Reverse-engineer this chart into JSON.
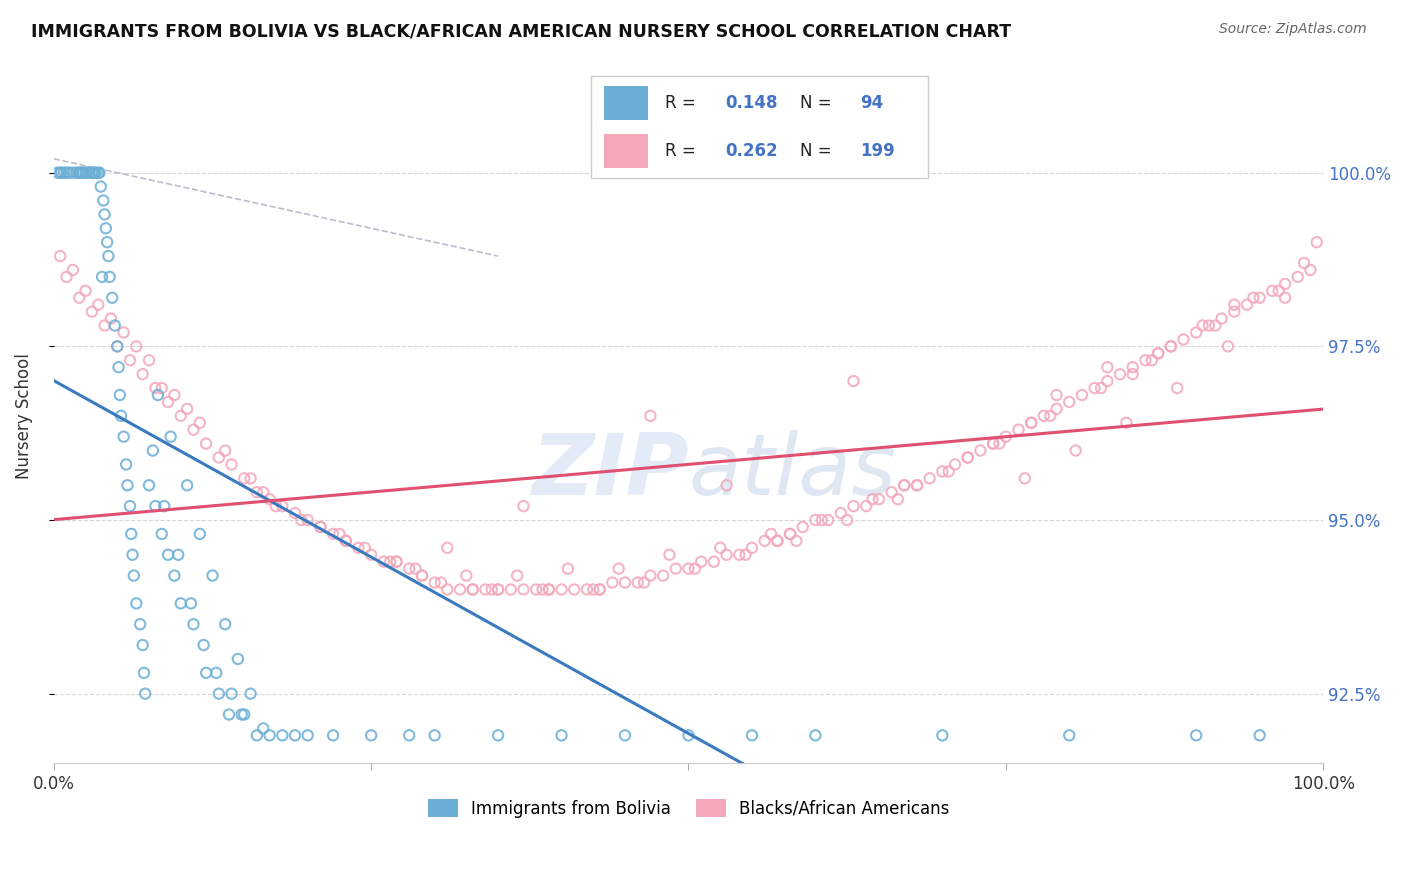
{
  "title": "IMMIGRANTS FROM BOLIVIA VS BLACK/AFRICAN AMERICAN NURSERY SCHOOL CORRELATION CHART",
  "source": "Source: ZipAtlas.com",
  "ylabel": "Nursery School",
  "xlim": [
    0,
    100
  ],
  "ylim": [
    91.5,
    101.5
  ],
  "yticks": [
    92.5,
    95.0,
    97.5,
    100.0
  ],
  "xticks": [
    0,
    25,
    50,
    75,
    100
  ],
  "ytick_labels": [
    "92.5%",
    "95.0%",
    "97.5%",
    "100.0%"
  ],
  "blue_color": "#6aaed6",
  "pink_color": "#f4a7b9",
  "blue_line_color": "#3a7abf",
  "pink_line_color": "#e05070",
  "blue_scatter_x": [
    0.3,
    0.5,
    0.6,
    0.8,
    1.0,
    1.2,
    1.5,
    1.8,
    2.0,
    2.1,
    2.2,
    2.3,
    2.5,
    2.6,
    2.8,
    3.0,
    3.1,
    3.2,
    3.3,
    3.5,
    3.6,
    3.7,
    3.9,
    4.0,
    4.1,
    4.2,
    4.3,
    4.4,
    4.6,
    4.8,
    5.0,
    5.1,
    5.2,
    5.3,
    5.5,
    5.7,
    5.8,
    6.0,
    6.1,
    6.2,
    6.3,
    6.5,
    6.8,
    7.0,
    7.1,
    7.2,
    7.5,
    7.8,
    8.0,
    8.2,
    8.5,
    8.7,
    9.0,
    9.2,
    9.5,
    9.8,
    10.0,
    10.5,
    10.8,
    11.0,
    11.5,
    11.8,
    12.0,
    12.5,
    12.8,
    13.0,
    13.5,
    13.8,
    14.0,
    14.5,
    14.8,
    15.0,
    15.5,
    16.0,
    16.5,
    17.0,
    18.0,
    19.0,
    20.0,
    22.0,
    25.0,
    28.0,
    30.0,
    35.0,
    40.0,
    45.0,
    50.0,
    55.0,
    60.0,
    70.0,
    80.0,
    90.0,
    95.0,
    3.8
  ],
  "blue_scatter_y": [
    100.0,
    100.0,
    100.0,
    100.0,
    100.0,
    100.0,
    100.0,
    100.0,
    100.0,
    100.0,
    100.0,
    100.0,
    100.0,
    100.0,
    100.0,
    100.0,
    100.0,
    100.0,
    100.0,
    100.0,
    100.0,
    99.8,
    99.6,
    99.4,
    99.2,
    99.0,
    98.8,
    98.5,
    98.2,
    97.8,
    97.5,
    97.2,
    96.8,
    96.5,
    96.2,
    95.8,
    95.5,
    95.2,
    94.8,
    94.5,
    94.2,
    93.8,
    93.5,
    93.2,
    92.8,
    92.5,
    95.5,
    96.0,
    95.2,
    96.8,
    94.8,
    95.2,
    94.5,
    96.2,
    94.2,
    94.5,
    93.8,
    95.5,
    93.8,
    93.5,
    94.8,
    93.2,
    92.8,
    94.2,
    92.8,
    92.5,
    93.5,
    92.2,
    92.5,
    93.0,
    92.2,
    92.2,
    92.5,
    91.9,
    92.0,
    91.9,
    91.9,
    91.9,
    91.9,
    91.9,
    91.9,
    91.9,
    91.9,
    91.9,
    91.9,
    91.9,
    91.9,
    91.9,
    91.9,
    91.9,
    91.9,
    91.9,
    91.9,
    98.5
  ],
  "pink_scatter_x": [
    0.5,
    1.0,
    2.0,
    3.0,
    4.0,
    5.0,
    6.0,
    7.0,
    8.0,
    9.0,
    10.0,
    11.0,
    12.0,
    13.0,
    14.0,
    15.0,
    16.0,
    17.0,
    18.0,
    19.0,
    20.0,
    21.0,
    22.0,
    23.0,
    24.0,
    25.0,
    26.0,
    27.0,
    28.0,
    29.0,
    30.0,
    31.0,
    32.0,
    33.0,
    34.0,
    35.0,
    36.0,
    37.0,
    38.0,
    39.0,
    40.0,
    41.0,
    42.0,
    43.0,
    44.0,
    45.0,
    46.0,
    47.0,
    48.0,
    49.0,
    50.0,
    51.0,
    52.0,
    53.0,
    54.0,
    55.0,
    56.0,
    57.0,
    58.0,
    59.0,
    60.0,
    61.0,
    62.0,
    63.0,
    64.0,
    65.0,
    66.0,
    67.0,
    68.0,
    69.0,
    70.0,
    71.0,
    72.0,
    73.0,
    74.0,
    75.0,
    76.0,
    77.0,
    78.0,
    79.0,
    80.0,
    81.0,
    82.0,
    83.0,
    84.0,
    85.0,
    86.0,
    87.0,
    88.0,
    89.0,
    90.0,
    91.0,
    92.0,
    93.0,
    94.0,
    95.0,
    96.0,
    97.0,
    98.0,
    99.0,
    1.5,
    3.5,
    5.5,
    7.5,
    9.5,
    11.5,
    13.5,
    15.5,
    17.5,
    19.5,
    22.5,
    26.5,
    30.5,
    34.5,
    38.5,
    42.5,
    46.5,
    50.5,
    54.5,
    58.5,
    62.5,
    66.5,
    70.5,
    74.5,
    78.5,
    82.5,
    86.5,
    90.5,
    94.5,
    98.5,
    23.0,
    47.0,
    57.0,
    63.0,
    68.0,
    74.0,
    77.0,
    83.0,
    88.0,
    91.5,
    37.0,
    43.0,
    53.0,
    58.0,
    79.0,
    85.0,
    93.0,
    27.0,
    31.0,
    33.0,
    39.0,
    21.0,
    29.0,
    35.0,
    72.0,
    96.5,
    67.0,
    87.0,
    99.5,
    4.5,
    8.5,
    2.5,
    6.5,
    10.5,
    16.5,
    24.5,
    28.5,
    32.5,
    36.5,
    40.5,
    44.5,
    48.5,
    52.5,
    56.5,
    60.5,
    64.5,
    76.5,
    80.5,
    84.5,
    88.5,
    92.5,
    97.0
  ],
  "pink_scatter_y": [
    98.8,
    98.5,
    98.2,
    98.0,
    97.8,
    97.5,
    97.3,
    97.1,
    96.9,
    96.7,
    96.5,
    96.3,
    96.1,
    95.9,
    95.8,
    95.6,
    95.4,
    95.3,
    95.2,
    95.1,
    95.0,
    94.9,
    94.8,
    94.7,
    94.6,
    94.5,
    94.4,
    94.4,
    94.3,
    94.2,
    94.1,
    94.0,
    94.0,
    94.0,
    94.0,
    94.0,
    94.0,
    94.0,
    94.0,
    94.0,
    94.0,
    94.0,
    94.0,
    94.0,
    94.1,
    94.1,
    94.1,
    94.2,
    94.2,
    94.3,
    94.3,
    94.4,
    94.4,
    94.5,
    94.5,
    94.6,
    94.7,
    94.7,
    94.8,
    94.9,
    95.0,
    95.0,
    95.1,
    95.2,
    95.2,
    95.3,
    95.4,
    95.5,
    95.5,
    95.6,
    95.7,
    95.8,
    95.9,
    96.0,
    96.1,
    96.2,
    96.3,
    96.4,
    96.5,
    96.6,
    96.7,
    96.8,
    96.9,
    97.0,
    97.1,
    97.2,
    97.3,
    97.4,
    97.5,
    97.6,
    97.7,
    97.8,
    97.9,
    98.0,
    98.1,
    98.2,
    98.3,
    98.4,
    98.5,
    98.6,
    98.6,
    98.1,
    97.7,
    97.3,
    96.8,
    96.4,
    96.0,
    95.6,
    95.2,
    95.0,
    94.8,
    94.4,
    94.1,
    94.0,
    94.0,
    94.0,
    94.1,
    94.3,
    94.5,
    94.7,
    95.0,
    95.3,
    95.7,
    96.1,
    96.5,
    96.9,
    97.3,
    97.8,
    98.2,
    98.7,
    94.7,
    96.5,
    94.7,
    97.0,
    95.5,
    96.1,
    96.4,
    97.2,
    97.5,
    97.8,
    95.2,
    94.0,
    95.5,
    94.8,
    96.8,
    97.1,
    98.1,
    94.4,
    94.6,
    94.0,
    94.0,
    94.9,
    94.2,
    94.0,
    95.9,
    98.3,
    95.5,
    97.4,
    99.0,
    97.9,
    96.9,
    98.3,
    97.5,
    96.6,
    95.4,
    94.6,
    94.3,
    94.2,
    94.2,
    94.3,
    94.3,
    94.5,
    94.6,
    94.8,
    95.0,
    95.3,
    95.6,
    96.0,
    96.4,
    96.9,
    97.5,
    98.2
  ]
}
